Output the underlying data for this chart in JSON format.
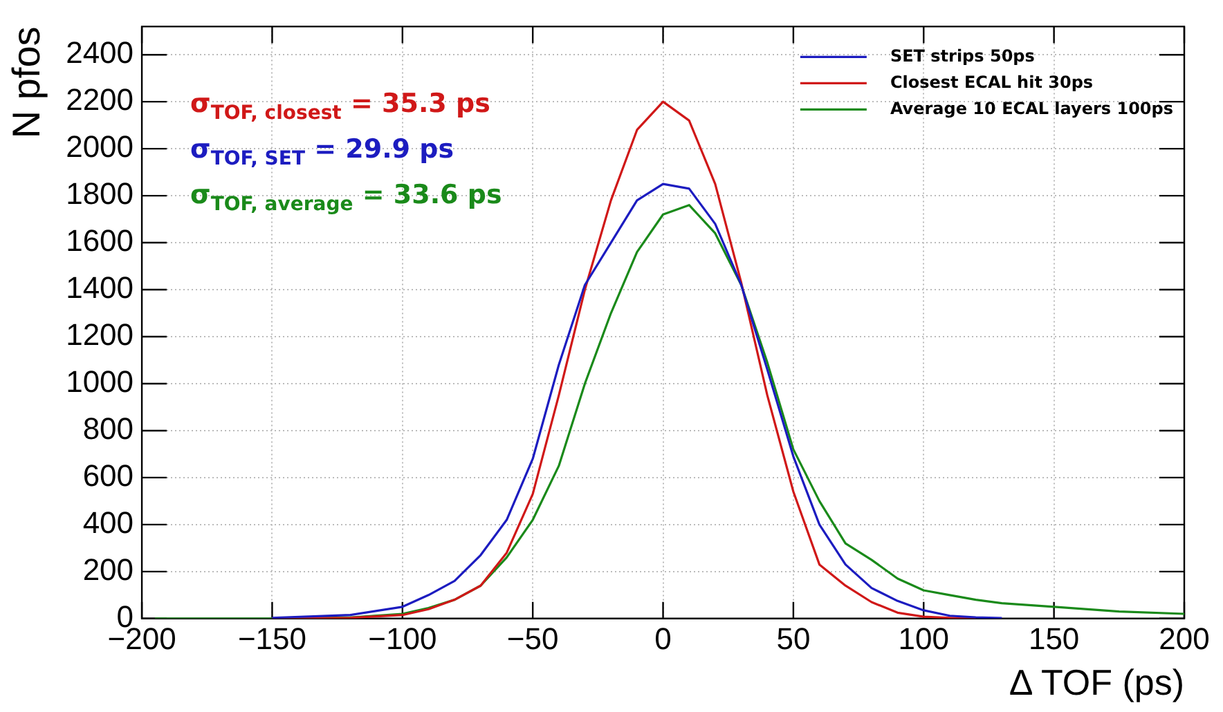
{
  "chart_data": {
    "type": "line",
    "xlabel": "Δ TOF (ps)",
    "ylabel": "N pfos",
    "x": [
      -195,
      -150,
      -120,
      -100,
      -90,
      -80,
      -70,
      -60,
      -50,
      -40,
      -30,
      -20,
      -10,
      0,
      10,
      20,
      30,
      40,
      50,
      60,
      70,
      80,
      90,
      100,
      110,
      120,
      130,
      150,
      175,
      200
    ],
    "series": [
      {
        "name": "SET strips 50ps",
        "color": "#1c1cc0",
        "values": [
          null,
          3,
          15,
          50,
          100,
          160,
          270,
          420,
          680,
          1080,
          1420,
          1600,
          1780,
          1850,
          1830,
          1680,
          1420,
          1060,
          690,
          400,
          230,
          130,
          75,
          35,
          12,
          5,
          2,
          null,
          null,
          null
        ]
      },
      {
        "name": "Closest ECAL hit 30ps",
        "color": "#d01818",
        "values": [
          null,
          0,
          3,
          15,
          40,
          80,
          140,
          280,
          530,
          950,
          1400,
          1780,
          2080,
          2200,
          2120,
          1850,
          1430,
          950,
          540,
          230,
          140,
          70,
          25,
          8,
          3,
          0,
          null,
          null,
          null,
          null
        ]
      },
      {
        "name": "Average 10 ECAL layers 100ps",
        "color": "#1a8a1a",
        "values": [
          0,
          0,
          5,
          20,
          45,
          80,
          140,
          260,
          420,
          650,
          1000,
          1300,
          1560,
          1720,
          1760,
          1640,
          1420,
          1090,
          720,
          500,
          320,
          250,
          170,
          120,
          100,
          80,
          65,
          50,
          30,
          20
        ]
      }
    ],
    "annotations": [
      "σ$_{TOF, closest}$ = 35.3 ps",
      "σ$_{TOF, SET}$ = 29.9 ps",
      "σ$_{TOF, average}$ = 33.6 ps"
    ],
    "xlim": [
      -200,
      200
    ],
    "ylim": [
      0,
      2520
    ],
    "xticks": [
      {
        "value": -200,
        "label": "−200"
      },
      {
        "value": -150,
        "label": "−150"
      },
      {
        "value": -100,
        "label": "−100"
      },
      {
        "value": -50,
        "label": "−50"
      },
      0,
      50,
      100,
      150,
      200
    ],
    "yticks": [
      0,
      200,
      400,
      600,
      800,
      1000,
      1200,
      1400,
      1600,
      1800,
      2000,
      2200,
      2400
    ],
    "grid": true,
    "legend": "top right",
    "marker": "none",
    "line_style": "solid"
  }
}
